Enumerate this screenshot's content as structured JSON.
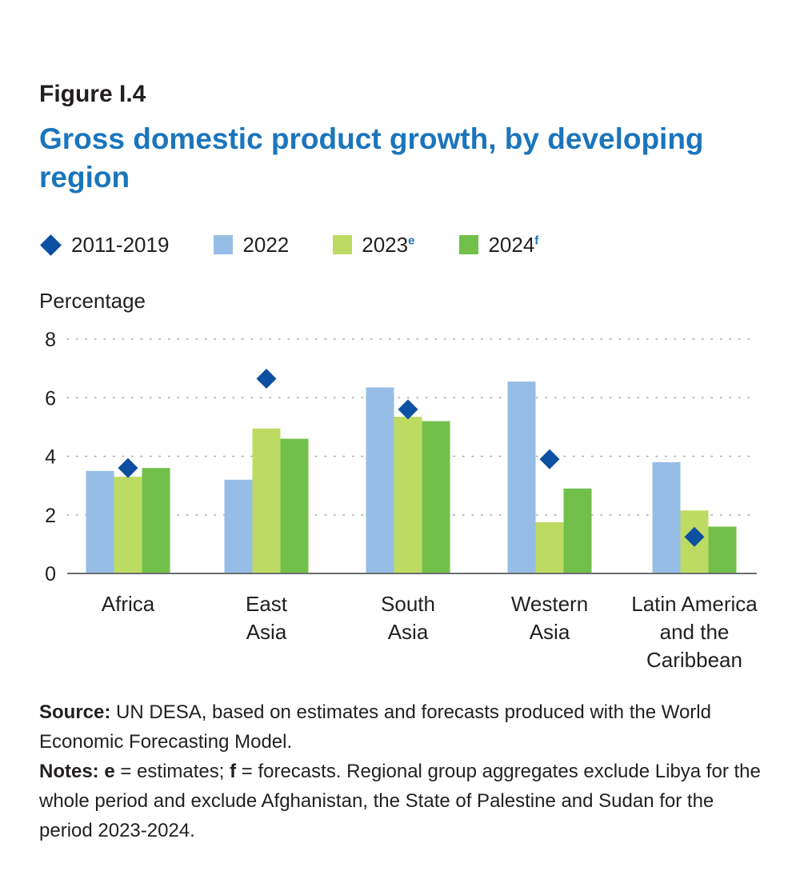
{
  "figure": {
    "label": "Figure I.4",
    "title": "Gross domestic product growth, by developing region"
  },
  "legend": [
    {
      "label": "2011-2019",
      "sup": "",
      "shape": "diamond",
      "color": "#0d4fa0"
    },
    {
      "label": "2022",
      "sup": "",
      "shape": "square",
      "color": "#96bde6"
    },
    {
      "label": "2023",
      "sup": "e",
      "shape": "square",
      "color": "#bddb63"
    },
    {
      "label": "2024",
      "sup": "f",
      "shape": "square",
      "color": "#72c04a"
    }
  ],
  "chart_data": {
    "type": "bar",
    "ylabel": "Percentage",
    "ylim": [
      0,
      8
    ],
    "yticks": [
      0,
      2,
      4,
      6,
      8
    ],
    "grid": "dotted-horizontal",
    "categories": [
      [
        "Africa"
      ],
      [
        "East",
        "Asia"
      ],
      [
        "South",
        "Asia"
      ],
      [
        "Western",
        "Asia"
      ],
      [
        "Latin America",
        "and the",
        "Caribbean"
      ]
    ],
    "series": [
      {
        "name": "2022",
        "kind": "bar",
        "color": "#96bde6",
        "values": [
          3.5,
          3.2,
          6.35,
          6.55,
          3.8
        ]
      },
      {
        "name": "2023e",
        "kind": "bar",
        "color": "#bddb63",
        "values": [
          3.3,
          4.95,
          5.35,
          1.75,
          2.15
        ]
      },
      {
        "name": "2024f",
        "kind": "bar",
        "color": "#72c04a",
        "values": [
          3.6,
          4.6,
          5.2,
          2.9,
          1.6
        ]
      },
      {
        "name": "2011-2019",
        "kind": "marker",
        "color": "#0d4fa0",
        "values": [
          3.6,
          6.65,
          5.6,
          3.9,
          1.25
        ]
      }
    ]
  },
  "notes": {
    "source_label": "Source:",
    "source_text": " UN DESA, based on estimates and forecasts produced with the World Economic Forecasting Model.",
    "notes_label": "Notes:",
    "e_label": "e",
    "e_text": " = estimates; ",
    "f_label": "f",
    "f_text": " = forecasts. Regional group aggregates exclude Libya for the whole period and exclude Afghanistan, the State of Palestine and Sudan for the period 2023-2024."
  }
}
